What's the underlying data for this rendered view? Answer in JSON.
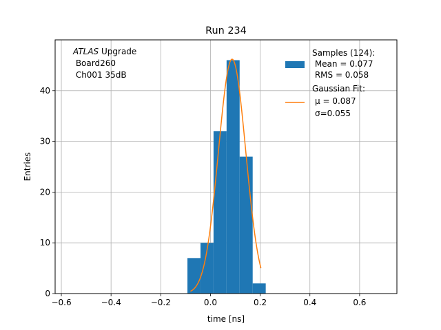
{
  "chart_data": {
    "type": "bar",
    "title": "Run 234",
    "xlabel": "time [ns]",
    "ylabel": "Entries",
    "xlim": [
      -0.625,
      0.75
    ],
    "ylim": [
      0,
      50
    ],
    "xticks": [
      -0.6,
      -0.4,
      -0.2,
      0.0,
      0.2,
      0.4,
      0.6
    ],
    "xtick_labels": [
      "−0.6",
      "−0.4",
      "−0.2",
      "0.0",
      "0.2",
      "0.4",
      "0.6"
    ],
    "yticks": [
      0,
      10,
      20,
      30,
      40
    ],
    "ytick_labels": [
      "0",
      "10",
      "20",
      "30",
      "40"
    ],
    "grid": true,
    "legend_position": "top-right",
    "annotation": {
      "line1_italic": "ATLAS",
      "line1_rest": " Upgrade",
      "line2": " Board260",
      "line3": " Ch001 35dB"
    },
    "histogram": {
      "name": "Samples (124):",
      "color": "#1f77b4",
      "bin_edges": [
        -0.0927,
        -0.0402,
        0.0123,
        0.0648,
        0.1173,
        0.1698,
        0.2223
      ],
      "counts": [
        7,
        10,
        32,
        46,
        27,
        2
      ],
      "stats": [
        " Mean = 0.077",
        " RMS = 0.058"
      ]
    },
    "fit": {
      "name": "Gaussian Fit:",
      "color": "#ff7f0e",
      "mu": 0.087,
      "sigma": 0.055,
      "amplitude": 46.2,
      "x_range": [
        -0.0804,
        0.203
      ],
      "stats": [
        "μ = 0.087",
        "σ=0.055"
      ]
    }
  }
}
